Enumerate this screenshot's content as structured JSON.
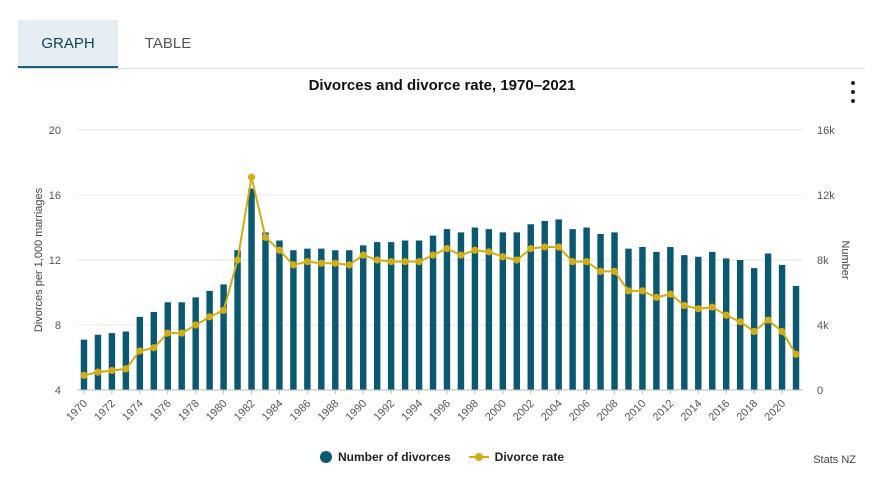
{
  "tabs": [
    {
      "label": "GRAPH",
      "active": true
    },
    {
      "label": "TABLE",
      "active": false
    }
  ],
  "menu_icon": "kebab-menu-icon",
  "source": "Stats NZ",
  "colors": {
    "bar": "#0b5871",
    "line": "#d2ac14",
    "grid": "#e6e6e6"
  },
  "chart_data": {
    "type": "bar",
    "title": "Divorces and divorce rate, 1970–2021",
    "ylabel_left": "Divorces per 1,000 marriages",
    "ylabel_right": "Number",
    "ylim_left": [
      4,
      20
    ],
    "ylim_right": [
      0,
      16000
    ],
    "yticks_left": [
      4,
      8,
      12,
      16,
      20
    ],
    "yticks_right": [
      "0",
      "4k",
      "8k",
      "12k",
      "16k"
    ],
    "x": [
      1970,
      1971,
      1972,
      1973,
      1974,
      1975,
      1976,
      1977,
      1978,
      1979,
      1980,
      1981,
      1982,
      1983,
      1984,
      1985,
      1986,
      1987,
      1988,
      1989,
      1990,
      1991,
      1992,
      1993,
      1994,
      1995,
      1996,
      1997,
      1998,
      1999,
      2000,
      2001,
      2002,
      2003,
      2004,
      2005,
      2006,
      2007,
      2008,
      2009,
      2010,
      2011,
      2012,
      2013,
      2014,
      2015,
      2016,
      2017,
      2018,
      2019,
      2020,
      2021
    ],
    "xtick_labels": [
      "1970",
      "1972",
      "1974",
      "1976",
      "1978",
      "1980",
      "1982",
      "1984",
      "1986",
      "1988",
      "1990",
      "1992",
      "1994",
      "1996",
      "1998",
      "2000",
      "2002",
      "2004",
      "2006",
      "2008",
      "2010",
      "2012",
      "2014",
      "2016",
      "2018",
      "2020"
    ],
    "grid": true,
    "legend_position": "bottom-center",
    "series": [
      {
        "name": "Number of divorces",
        "type": "bar",
        "axis": "right",
        "values": [
          3100,
          3400,
          3500,
          3600,
          4500,
          4800,
          5400,
          5400,
          5700,
          6100,
          6500,
          8600,
          12400,
          9700,
          9200,
          8600,
          8700,
          8700,
          8600,
          8600,
          8900,
          9100,
          9100,
          9200,
          9200,
          9500,
          9900,
          9700,
          10000,
          9900,
          9700,
          9700,
          10200,
          10400,
          10500,
          9900,
          10000,
          9600,
          9700,
          8700,
          8800,
          8500,
          8800,
          8300,
          8200,
          8500,
          8100,
          8000,
          7500,
          8400,
          7700,
          6400
        ]
      },
      {
        "name": "Divorce rate",
        "type": "line",
        "axis": "left",
        "values": [
          4.9,
          5.1,
          5.2,
          5.3,
          6.4,
          6.6,
          7.5,
          7.5,
          8.0,
          8.5,
          8.9,
          12.0,
          17.1,
          13.4,
          12.6,
          11.7,
          11.9,
          11.8,
          11.8,
          11.7,
          12.3,
          12.0,
          11.9,
          11.9,
          11.9,
          12.3,
          12.7,
          12.3,
          12.6,
          12.5,
          12.2,
          12.0,
          12.7,
          12.8,
          12.8,
          11.9,
          11.9,
          11.3,
          11.3,
          10.1,
          10.1,
          9.7,
          9.9,
          9.2,
          9.0,
          9.1,
          8.6,
          8.2,
          7.6,
          8.3,
          7.6,
          6.2
        ]
      }
    ]
  }
}
